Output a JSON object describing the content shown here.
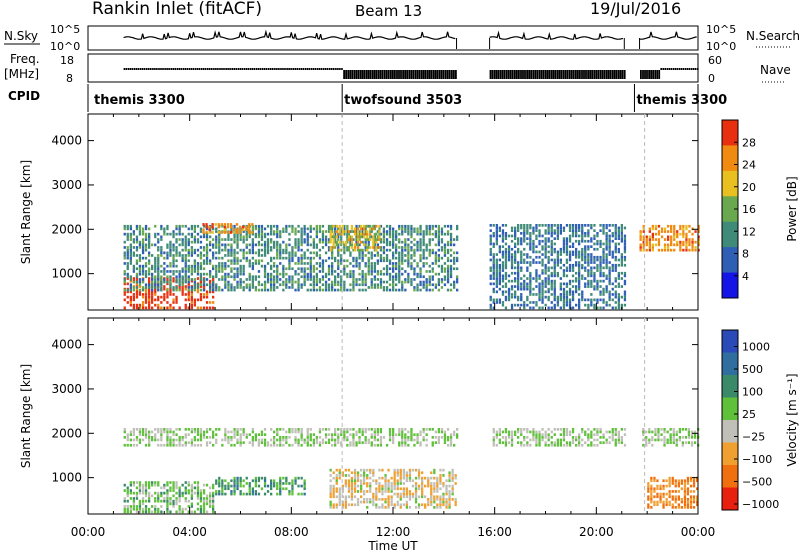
{
  "header": {
    "title": "Rankin Inlet (fitACF)",
    "beam": "Beam 13",
    "date": "19/Jul/2016"
  },
  "strip_labels": {
    "nsky": "N.Sky",
    "nsky_ticks": [
      "10^5",
      "10^0"
    ],
    "nsearch": "N.Search",
    "nsearch_ticks": [
      "10^5",
      "10^0"
    ],
    "freq": "Freq.",
    "freq_unit": "[MHz]",
    "freq_ticks": [
      "18",
      "8"
    ],
    "nave": "Nave",
    "nave_ticks": [
      "60",
      "0"
    ],
    "cpid": "CPID"
  },
  "cpid_segments": [
    {
      "label": "themis 3300",
      "start_hour": 0
    },
    {
      "label": "twofsound 3503",
      "start_hour": 10
    },
    {
      "label": "themis 3300",
      "start_hour": 21.5
    }
  ],
  "axes": {
    "xlabel": "Time UT",
    "ylabel": "Slant Range [km]",
    "x_ticks": [
      "00:00",
      "04:00",
      "08:00",
      "12:00",
      "16:00",
      "20:00",
      "00:00"
    ],
    "y_ticks": [
      "1000",
      "2000",
      "3000",
      "4000"
    ]
  },
  "colorbars": {
    "power": {
      "label": "Power [dB]",
      "ticks": [
        "4",
        "8",
        "12",
        "16",
        "20",
        "24",
        "28"
      ],
      "colors": [
        "#1414e6",
        "#2f5fb4",
        "#3f8a78",
        "#6aa84f",
        "#e8c020",
        "#f08a10",
        "#e83010"
      ]
    },
    "velocity": {
      "label": "Velocity [m s⁻¹]",
      "ticks": [
        "1000",
        "500",
        "100",
        "25",
        "−25",
        "−100",
        "−500",
        "−1000"
      ],
      "colors": [
        "#2a4ab8",
        "#2f6e9e",
        "#3a8a6a",
        "#5fc03a",
        "#c0c0b8",
        "#f0a030",
        "#f07010",
        "#e82010"
      ]
    }
  },
  "chart_data": [
    {
      "type": "line",
      "title": "",
      "series": [
        {
          "name": "N.Sky",
          "scale": "log"
        },
        {
          "name": "N.Search",
          "scale": "log"
        }
      ],
      "ylim": [
        "10^0",
        "10^5"
      ],
      "xlim": [
        0,
        24
      ]
    },
    {
      "type": "line",
      "series": [
        {
          "name": "Freq.",
          "unit": "MHz"
        },
        {
          "name": "Nave"
        }
      ],
      "ylim_freq": [
        8,
        18
      ],
      "ylim_nave": [
        0,
        60
      ],
      "xlim": [
        0,
        24
      ]
    },
    {
      "type": "heatmap",
      "quantity": "Power",
      "unit": "dB",
      "xlabel": "Time UT",
      "ylabel": "Slant Range [km]",
      "xlim": [
        0,
        24
      ],
      "ylim": [
        180,
        4600
      ],
      "data_gaps_hours": [
        [
          14.5,
          15.8
        ],
        [
          21.1,
          21.7
        ]
      ],
      "regions": [
        {
          "t_start": 1.4,
          "t_end": 5.0,
          "range_start": 200,
          "range_end": 900,
          "value_db": 28
        },
        {
          "t_start": 1.4,
          "t_end": 14.5,
          "range_start": 600,
          "range_end": 2100,
          "value_db": 12
        },
        {
          "t_start": 4.5,
          "t_end": 6.5,
          "range_start": 1900,
          "range_end": 2100,
          "value_db": 24
        },
        {
          "t_start": 9.5,
          "t_end": 11.5,
          "range_start": 1500,
          "range_end": 2100,
          "value_db": 20
        },
        {
          "t_start": 15.8,
          "t_end": 21.1,
          "range_start": 200,
          "range_end": 2100,
          "value_db": 10
        },
        {
          "t_start": 21.7,
          "t_end": 24,
          "range_start": 1500,
          "range_end": 2100,
          "value_db": 24
        }
      ]
    },
    {
      "type": "heatmap",
      "quantity": "Velocity",
      "unit": "m s-1",
      "xlabel": "Time UT",
      "ylabel": "Slant Range [km]",
      "xlim": [
        0,
        24
      ],
      "ylim": [
        180,
        4600
      ],
      "data_gaps_hours": [
        [
          14.5,
          15.8
        ],
        [
          21.1,
          21.7
        ]
      ],
      "regions": [
        {
          "t_start": 1.4,
          "t_end": 24,
          "range_start": 1700,
          "range_end": 2100,
          "value_ms": 0
        },
        {
          "t_start": 1.4,
          "t_end": 5.0,
          "range_start": 200,
          "range_end": 900,
          "value_ms": 100
        },
        {
          "t_start": 5.0,
          "t_end": 8.5,
          "range_start": 600,
          "range_end": 1000,
          "value_ms": 300
        },
        {
          "t_start": 9.5,
          "t_end": 14.5,
          "range_start": 300,
          "range_end": 1200,
          "value_ms": -200
        },
        {
          "t_start": 22.0,
          "t_end": 24,
          "range_start": 300,
          "range_end": 1000,
          "value_ms": -500
        }
      ]
    }
  ]
}
